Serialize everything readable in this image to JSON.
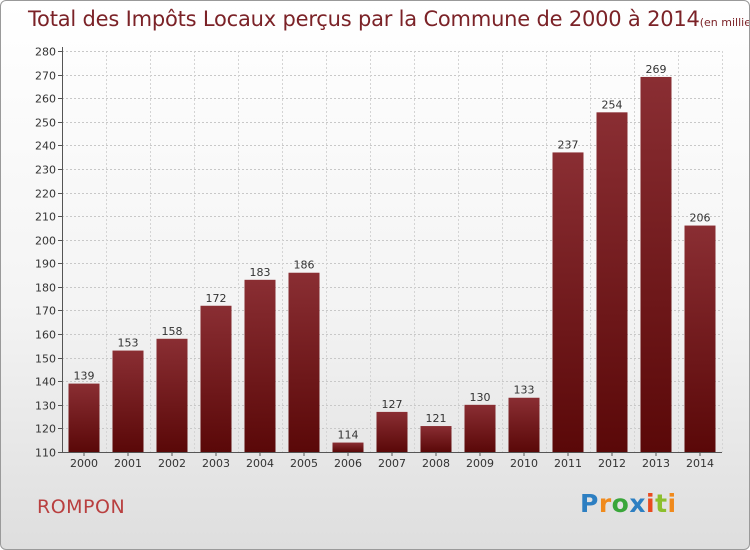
{
  "title": "Total des Impôts Locaux perçus par la Commune de 2000 à 2014",
  "unit_note": "(en milliers d'€)",
  "commune": "ROMPON",
  "logo": {
    "text": "Proxiti",
    "letters": [
      "P",
      "r",
      "o",
      "x",
      "i",
      "t",
      "i"
    ]
  },
  "colors": {
    "bar_top": "#8a2e33",
    "bar_bottom": "#5a0808",
    "title": "#7b2227",
    "commune": "#b93f3f"
  },
  "chart_data": {
    "type": "bar",
    "title": "Total des Impôts Locaux perçus par la Commune de 2000 à 2014",
    "xlabel": "",
    "ylabel": "",
    "categories": [
      "2000",
      "2001",
      "2002",
      "2003",
      "2004",
      "2005",
      "2006",
      "2007",
      "2008",
      "2009",
      "2010",
      "2011",
      "2012",
      "2013",
      "2014"
    ],
    "values": [
      139,
      153,
      158,
      172,
      183,
      186,
      114,
      127,
      121,
      130,
      133,
      237,
      254,
      269,
      206
    ],
    "ylim": [
      110,
      280
    ],
    "yticks": [
      110,
      120,
      130,
      140,
      150,
      160,
      170,
      180,
      190,
      200,
      210,
      220,
      230,
      240,
      250,
      260,
      270,
      280
    ],
    "grid": true
  }
}
